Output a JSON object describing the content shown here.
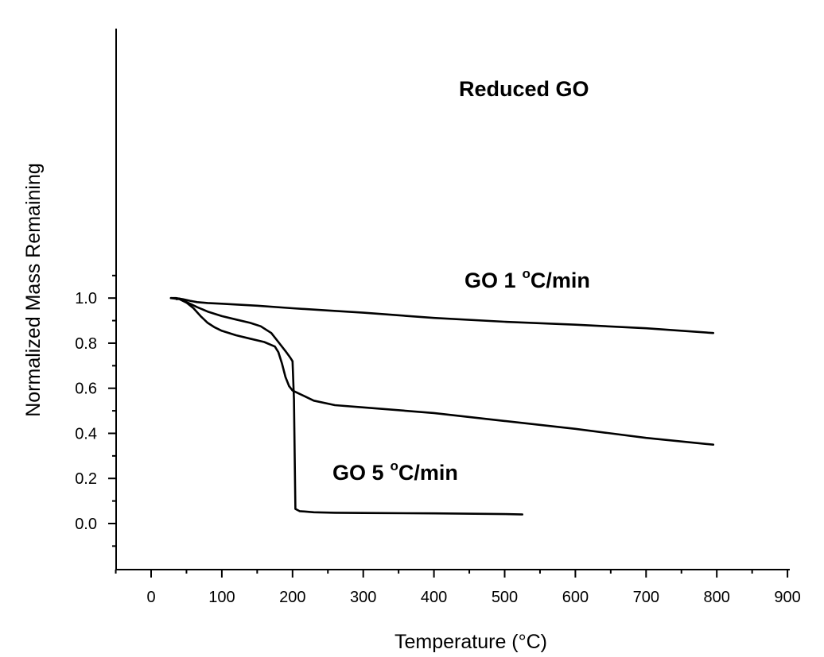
{
  "chart_data": {
    "type": "line",
    "title": "",
    "xlabel": "Temperature (°C)",
    "ylabel": "Normalized Mass Remaining",
    "xlim": [
      -50,
      900
    ],
    "ylim": [
      -0.1,
      1.1
    ],
    "x_ticks": [
      0,
      100,
      200,
      300,
      400,
      500,
      600,
      700,
      800,
      900
    ],
    "y_ticks": [
      0.0,
      0.2,
      0.4,
      0.6,
      0.8,
      1.0
    ],
    "y_tick_labels": [
      "0.0",
      "0.2",
      "0.4",
      "0.6",
      "0.8",
      "1.0"
    ],
    "grid": false,
    "legend": "none",
    "series": [
      {
        "name": "Reduced GO",
        "label_text": "Reduced GO",
        "x": [
          28,
          35,
          45,
          55,
          65,
          80,
          100,
          150,
          200,
          250,
          300,
          400,
          500,
          600,
          700,
          795
        ],
        "y": [
          1.0,
          1.0,
          0.995,
          0.988,
          0.982,
          0.978,
          0.975,
          0.966,
          0.955,
          0.945,
          0.935,
          0.912,
          0.895,
          0.882,
          0.866,
          0.845
        ]
      },
      {
        "name": "GO 1 °C/min",
        "label_text": "GO 1",
        "label_sup": "o",
        "label_unit": "C/min",
        "x": [
          28,
          40,
          50,
          60,
          70,
          80,
          90,
          100,
          120,
          140,
          160,
          175,
          180,
          185,
          190,
          195,
          200,
          210,
          230,
          260,
          300,
          400,
          500,
          600,
          700,
          795
        ],
        "y": [
          1.0,
          0.995,
          0.98,
          0.955,
          0.92,
          0.89,
          0.87,
          0.855,
          0.835,
          0.82,
          0.805,
          0.785,
          0.76,
          0.71,
          0.65,
          0.61,
          0.59,
          0.575,
          0.545,
          0.525,
          0.515,
          0.49,
          0.455,
          0.42,
          0.38,
          0.35
        ]
      },
      {
        "name": "GO 5 °C/min",
        "label_text": "GO 5",
        "label_sup": "o",
        "label_unit": "C/min",
        "x": [
          36,
          40,
          45,
          55,
          65,
          80,
          100,
          120,
          140,
          155,
          170,
          180,
          190,
          197,
          200,
          202,
          203,
          204,
          210,
          230,
          260,
          300,
          400,
          500,
          525
        ],
        "y": [
          0.995,
          0.998,
          0.99,
          0.975,
          0.96,
          0.94,
          0.92,
          0.905,
          0.89,
          0.875,
          0.845,
          0.805,
          0.765,
          0.735,
          0.72,
          0.55,
          0.3,
          0.065,
          0.055,
          0.05,
          0.048,
          0.047,
          0.045,
          0.042,
          0.04
        ]
      }
    ]
  }
}
